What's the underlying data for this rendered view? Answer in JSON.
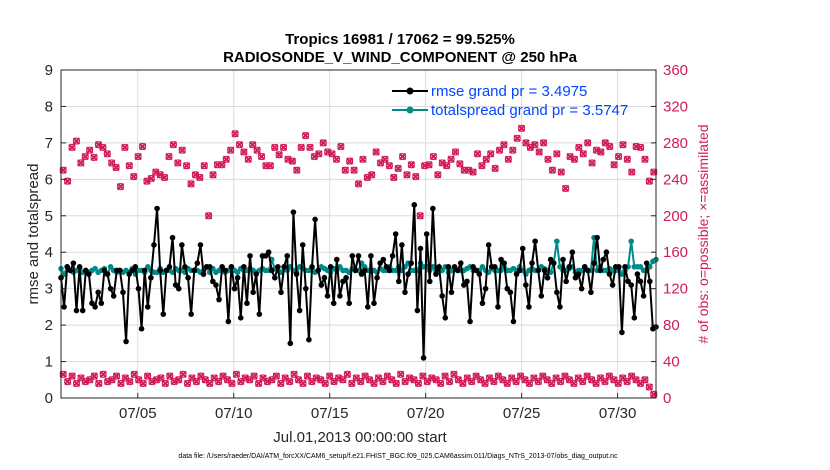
{
  "chart_data": {
    "type": "line",
    "title": "Tropics 16981 / 17062 = 99.525%",
    "subtitle": "RADIOSONDE_V_WIND_COMPONENT @ 250 hPa",
    "xlabel": "Jul.01,2013 00:00:00 start",
    "ylabel": "rmse and totalspread",
    "ylabel_right": "# of obs: o=possible; ×=assimilated",
    "footnote": "data file: /Users/raeder/DAI/ATM_forcXX/CAM6_setup/f.e21.FHIST_BGC.f09_025.CAM6assim.011/Diags_NTrS_2013-07/obs_diag_output.nc",
    "x_range": [
      1,
      32
    ],
    "x_ticks": [
      5,
      10,
      15,
      20,
      25,
      30
    ],
    "x_tick_labels": [
      "07/05",
      "07/10",
      "07/15",
      "07/20",
      "07/25",
      "07/30"
    ],
    "ylim": [
      0,
      9
    ],
    "y_ticks": [
      "0",
      "1",
      "2",
      "3",
      "4",
      "5",
      "6",
      "7",
      "8",
      "9"
    ],
    "ylim_right": [
      0,
      360
    ],
    "y_ticks_right": [
      "0",
      "40",
      "80",
      "120",
      "160",
      "200",
      "240",
      "280",
      "320",
      "360"
    ],
    "legend_position": "top-right",
    "colors": {
      "rmse": "#000000",
      "spread": "#008b8b",
      "obs": "#d01c5b",
      "grid": "#dcdcdc"
    },
    "series": [
      {
        "name": "rmse grand pr = 3.4975",
        "axis": "left",
        "values": [
          3.3,
          2.5,
          3.6,
          3.5,
          3.7,
          2.4,
          3.6,
          2.4,
          3.5,
          3.4,
          2.6,
          2.5,
          2.9,
          2.6,
          3.5,
          3.4,
          3.0,
          2.8,
          3.5,
          3.5,
          2.9,
          1.55,
          3.4,
          3.5,
          3.6,
          3.0,
          1.9,
          3.5,
          2.5,
          3.3,
          4.2,
          5.2,
          3.5,
          2.3,
          3.5,
          3.6,
          4.4,
          3.1,
          3.0,
          4.2,
          3.6,
          3.3,
          2.3,
          3.5,
          3.7,
          4.2,
          3.4,
          3.6,
          3.6,
          3.2,
          3.1,
          2.7,
          3.6,
          3.5,
          2.1,
          3.6,
          3.0,
          3.3,
          2.2,
          3.6,
          2.6,
          3.9,
          2.9,
          3.4,
          2.3,
          3.9,
          3.9,
          4.0,
          3.5,
          3.3,
          3.6,
          2.9,
          3.6,
          3.9,
          1.5,
          5.1,
          3.4,
          2.4,
          4.2,
          3.0,
          1.6,
          3.6,
          4.9,
          3.5,
          3.1,
          3.3,
          2.8,
          3.6,
          2.6,
          3.8,
          2.8,
          3.2,
          3.3,
          2.6,
          3.9,
          3.5,
          3.9,
          3.4,
          3.5,
          2.5,
          3.9,
          2.6,
          3.3,
          3.7,
          3.8,
          3.6,
          3.5,
          3.9,
          4.5,
          3.2,
          4.2,
          2.9,
          3.4,
          3.7,
          5.3,
          2.4,
          4.1,
          1.1,
          4.5,
          3.2,
          5.2,
          3.4,
          3.6,
          2.8,
          2.2,
          3.6,
          2.9,
          3.6,
          3.5,
          3.7,
          3.1,
          3.2,
          2.1,
          3.6,
          3.5,
          3.4,
          2.6,
          3.0,
          4.2,
          3.6,
          3.6,
          2.5,
          3.8,
          3.7,
          3.0,
          2.9,
          2.1,
          3.4,
          3.5,
          4.1,
          3.1,
          2.5,
          3.7,
          4.3,
          3.5,
          2.8,
          3.5,
          3.3,
          3.8,
          3.7,
          2.9,
          2.5,
          3.8,
          3.2,
          3.6,
          4.0,
          3.3,
          3.4,
          3.0,
          3.6,
          3.5,
          2.9,
          3.7,
          4.4,
          3.5,
          3.8,
          4.0,
          3.4,
          3.1,
          3.6,
          3.6,
          1.8,
          3.6,
          3.2,
          3.1,
          2.2,
          3.4,
          3.2,
          2.8,
          3.7,
          3.2,
          1.9,
          1.95
        ]
      },
      {
        "name": "totalspread grand pr = 3.5747",
        "axis": "left",
        "values": [
          3.55,
          3.4,
          3.6,
          3.5,
          3.45,
          3.5,
          3.55,
          3.45,
          3.5,
          3.45,
          3.5,
          3.55,
          3.45,
          3.5,
          3.55,
          3.4,
          3.6,
          3.5,
          3.45,
          3.5,
          3.45,
          3.5,
          3.45,
          3.55,
          3.4,
          3.5,
          3.5,
          3.45,
          3.6,
          3.5,
          3.45,
          3.45,
          3.55,
          3.45,
          3.5,
          3.5,
          3.45,
          3.55,
          3.5,
          3.5,
          3.45,
          3.55,
          3.5,
          3.5,
          3.5,
          3.45,
          3.5,
          3.6,
          3.45,
          3.55,
          3.45,
          3.5,
          3.55,
          3.45,
          3.5,
          3.6,
          3.5,
          3.45,
          3.55,
          3.5,
          3.5,
          3.55,
          3.5,
          3.45,
          3.5,
          3.55,
          3.5,
          3.5,
          3.8,
          3.55,
          3.5,
          3.45,
          3.6,
          3.5,
          3.6,
          3.5,
          3.45,
          3.6,
          3.55,
          3.5,
          3.5,
          3.55,
          3.45,
          3.5,
          3.6,
          3.55,
          3.5,
          3.45,
          3.55,
          3.5,
          3.6,
          3.5,
          3.5,
          3.45,
          3.55,
          3.5,
          3.5,
          3.7,
          3.6,
          3.5,
          3.5,
          3.5,
          3.45,
          3.55,
          3.5,
          3.5,
          3.6,
          3.5,
          3.5,
          3.6,
          3.5,
          3.6,
          3.7,
          3.5,
          3.5,
          3.5,
          3.7,
          3.6,
          3.6,
          3.5,
          3.6,
          3.5,
          3.5,
          3.5,
          3.6,
          3.45,
          3.5,
          3.55,
          3.5,
          3.5,
          3.5,
          3.55,
          3.6,
          3.5,
          3.5,
          3.5,
          3.6,
          3.5,
          3.45,
          3.55,
          3.5,
          3.5,
          3.5,
          3.6,
          3.5,
          3.5,
          3.55,
          3.5,
          3.6,
          3.5,
          3.4,
          3.5,
          3.55,
          3.5,
          3.5,
          3.6,
          3.55,
          3.5,
          3.45,
          3.7,
          4.3,
          3.6,
          3.5,
          3.5,
          3.55,
          3.6,
          3.45,
          3.5,
          3.5,
          3.6,
          3.5,
          3.5,
          4.4,
          3.5,
          3.6,
          3.5,
          3.5,
          3.55,
          3.5,
          3.5,
          3.5,
          3.4,
          3.5,
          3.6,
          4.3,
          3.6,
          3.6,
          3.6,
          3.5,
          3.5,
          3.6,
          3.75,
          3.8
        ]
      }
    ],
    "obs_possible_high": [
      250,
      238,
      275,
      282,
      258,
      265,
      272,
      264,
      278,
      275,
      268,
      258,
      253,
      232,
      275,
      255,
      243,
      265,
      276,
      238,
      241,
      248,
      245,
      242,
      265,
      278,
      258,
      272,
      255,
      235,
      245,
      242,
      255,
      200,
      245,
      256,
      256,
      262,
      272,
      290,
      278,
      270,
      262,
      278,
      272,
      265,
      255,
      255,
      275,
      267,
      275,
      262,
      260,
      250,
      275,
      288,
      275,
      265,
      268,
      280,
      270,
      268,
      262,
      276,
      250,
      260,
      250,
      235,
      262,
      242,
      245,
      270,
      258,
      262,
      255,
      242,
      252,
      265,
      245,
      256,
      243,
      200,
      255,
      256,
      265,
      245,
      258,
      255,
      262,
      270,
      257,
      250,
      250,
      248,
      268,
      255,
      262,
      268,
      252,
      272,
      278,
      262,
      272,
      285,
      296,
      280,
      275,
      278,
      270,
      280,
      262,
      250,
      268,
      248,
      230,
      265,
      262,
      275,
      268,
      280,
      258,
      272,
      270,
      280,
      276,
      256,
      265,
      278,
      262,
      248,
      276,
      275,
      262,
      238,
      248
    ],
    "obs_possible_low": [
      26,
      18,
      24,
      16,
      22,
      18,
      20,
      24,
      16,
      26,
      18,
      20,
      24,
      16,
      22,
      18,
      26,
      20,
      16,
      24,
      18,
      20,
      22,
      16,
      24,
      18,
      20,
      26,
      16,
      22,
      18,
      24,
      20,
      16,
      22,
      18,
      24,
      20,
      16,
      26,
      18,
      22,
      20,
      24,
      16,
      22,
      18,
      20,
      24,
      16,
      22,
      18,
      26,
      20,
      16,
      24,
      18,
      22,
      20,
      16,
      24,
      18,
      22,
      20,
      26,
      16,
      22,
      18,
      24,
      20,
      16,
      22,
      18,
      24,
      20,
      16,
      26,
      18,
      22,
      20,
      16,
      24,
      18,
      22,
      20,
      16,
      24,
      18,
      26,
      20,
      16,
      22,
      18,
      24,
      20,
      16,
      22,
      18,
      24,
      20,
      16,
      22,
      18,
      24,
      20,
      16,
      22,
      18,
      24,
      20,
      16,
      22,
      18,
      24,
      20,
      16,
      22,
      18,
      24,
      20,
      16,
      22,
      18,
      24,
      20,
      16,
      22,
      18,
      24,
      20,
      16,
      20,
      12,
      4
    ]
  }
}
